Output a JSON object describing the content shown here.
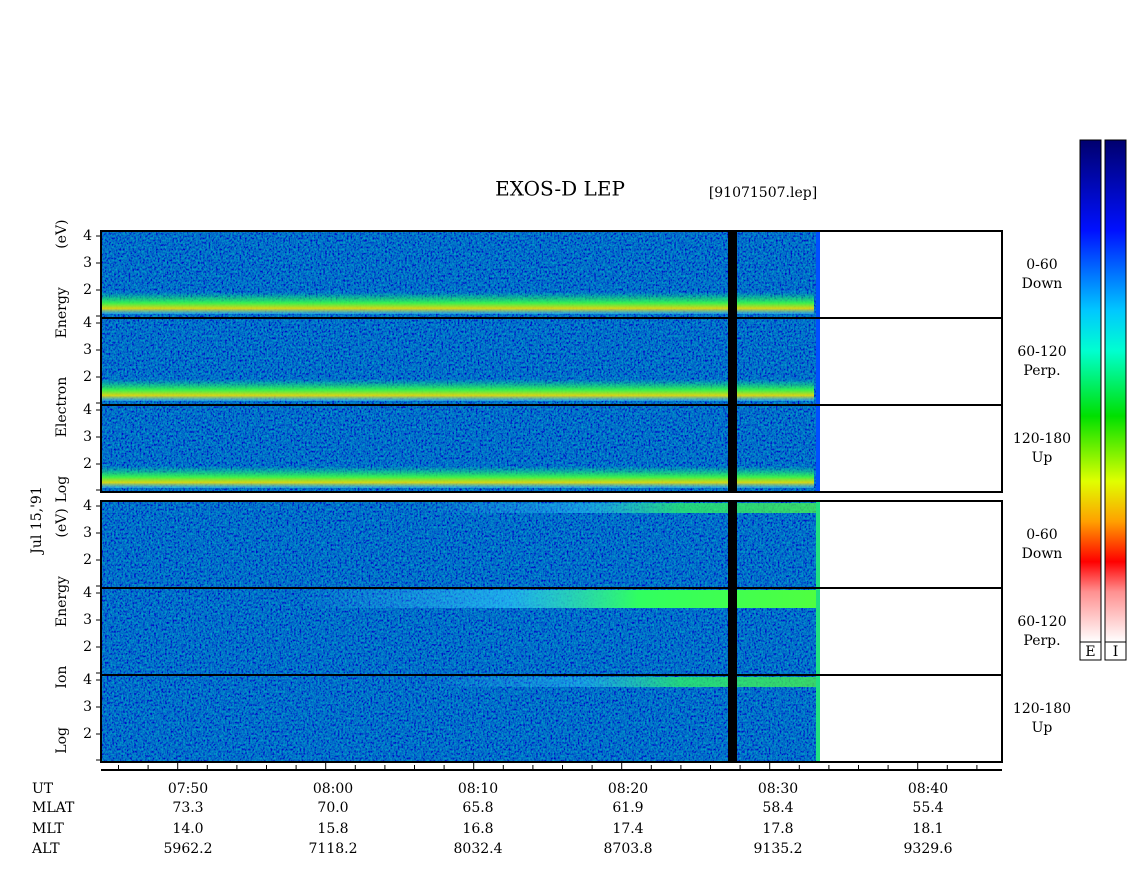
{
  "title": "EXOS-D LEP",
  "file": "[91071507.lep]",
  "date": "Jul 15,'91",
  "groups": [
    {
      "axis_label": "Log Electron Energy (eV)",
      "yticks": [
        2,
        3,
        4
      ],
      "panels": [
        {
          "angle": "0-60",
          "direction": "Down"
        },
        {
          "angle": "60-120",
          "direction": "Perp."
        },
        {
          "angle": "120-180",
          "direction": "Up"
        }
      ]
    },
    {
      "axis_label": "Log Ion Energy (eV)",
      "yticks": [
        2,
        3,
        4
      ],
      "panels": [
        {
          "angle": "0-60",
          "direction": "Down"
        },
        {
          "angle": "60-120",
          "direction": "Perp."
        },
        {
          "angle": "120-180",
          "direction": "Up"
        }
      ]
    }
  ],
  "colorbars": [
    "E",
    "I"
  ],
  "ephemeris": {
    "rows": [
      [
        "UT",
        "07:50",
        "08:00",
        "08:10",
        "08:20",
        "08:30",
        "08:40"
      ],
      [
        "MLAT",
        "73.3",
        "70.0",
        "65.8",
        "61.9",
        "58.4",
        "55.4"
      ],
      [
        "MLT",
        "14.0",
        "15.8",
        "16.8",
        "17.4",
        "17.8",
        "18.1"
      ],
      [
        "ALT",
        "5962.2",
        "7118.2",
        "8032.4",
        "8703.8",
        "9135.2",
        "9329.6"
      ]
    ]
  }
}
